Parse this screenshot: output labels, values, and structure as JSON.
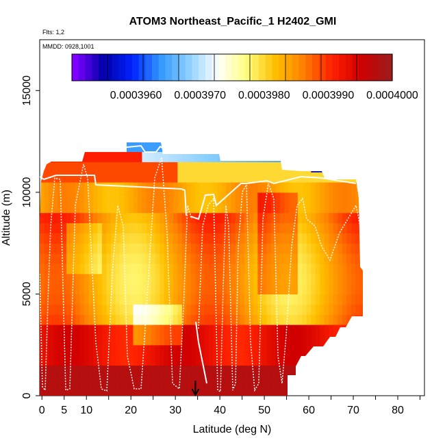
{
  "chart_data": {
    "type": "heatmap",
    "title": "ATOM3 Northeast_Pacific_1 H2402_GMI",
    "subtitle_flights": "Flts: 1,2",
    "subtitle_dates": "MMDD: 0928,1001",
    "xlabel": "Latitude (deg N)",
    "ylabel": "Altitude (m)",
    "xlim": [
      -0.5,
      86
    ],
    "ylim": [
      0,
      17500
    ],
    "x_ticks": [
      0,
      5,
      10,
      20,
      30,
      40,
      50,
      60,
      70,
      80
    ],
    "x_tick_labels": [
      "0",
      "5",
      "10",
      "20",
      "30",
      "40",
      "50",
      "60",
      "70",
      "80"
    ],
    "x_minor_ticks": [
      0,
      5,
      10,
      15,
      20,
      25,
      30,
      35,
      40,
      45,
      50,
      55,
      60,
      65,
      70,
      75,
      80,
      85
    ],
    "y_ticks": [
      0,
      5000,
      10000,
      15000
    ],
    "y_tick_labels": [
      "0",
      "5000",
      "10000",
      "15000"
    ],
    "colorbar": {
      "min": 0.000395,
      "max": 0.0004,
      "tick_values": [
        0.000396,
        0.000397,
        0.000398,
        0.000399,
        0.0004
      ],
      "tick_labels": [
        "0.0003960",
        "0.0003970",
        "0.0003980",
        "0.0003990",
        "0.0004000"
      ],
      "colors": [
        "#7f00ff",
        "#0000a8",
        "#0022ff",
        "#3399ff",
        "#8fd1ff",
        "#ffffff",
        "#ffff80",
        "#ffc000",
        "#ff8000",
        "#ff2000",
        "#d00000",
        "#a01a1a"
      ]
    },
    "profile_locations_lat": [
      1,
      5,
      8,
      13,
      16,
      23,
      27,
      36,
      40,
      42,
      49,
      52,
      54
    ],
    "marker_arrow_lat": 34.5,
    "grid": false,
    "legend": "none"
  }
}
